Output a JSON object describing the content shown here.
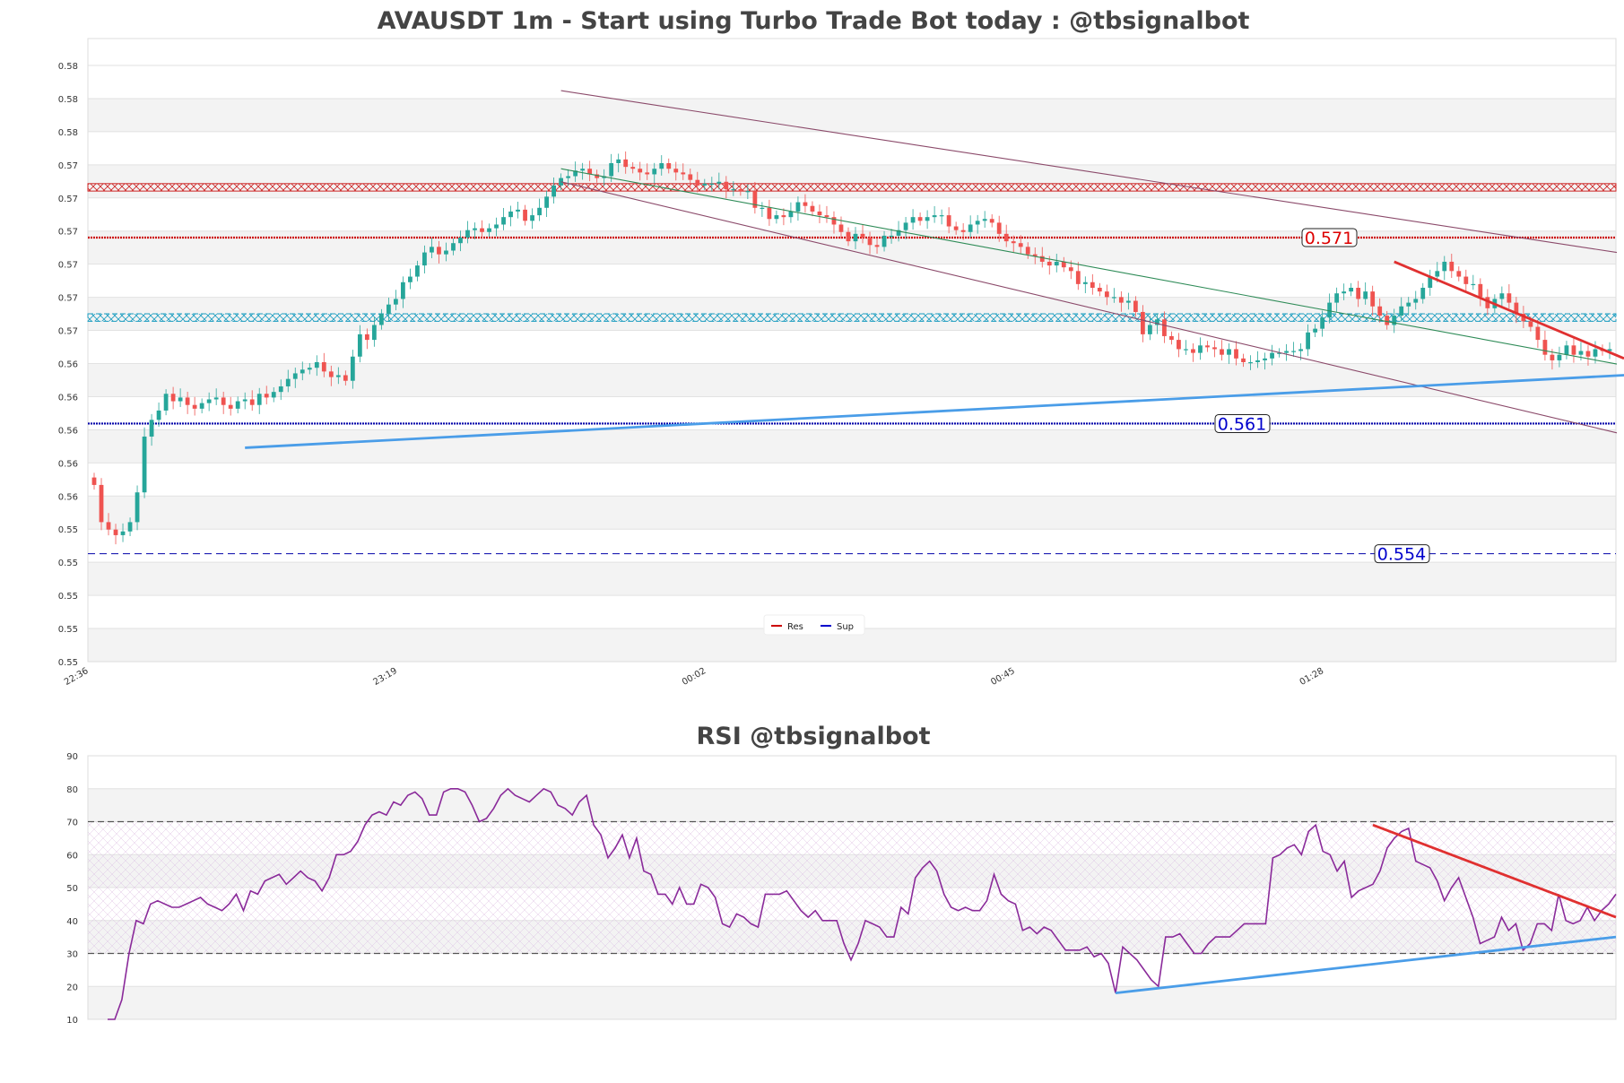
{
  "chart_data": [
    {
      "type": "candlestick",
      "title": "AVAUSDT 1m - Start using Turbo Trade Bot today : @tbsignalbot",
      "y_tick_labels": [
        "0.55",
        "0.55",
        "0.55",
        "0.55",
        "0.55",
        "0.56",
        "0.56",
        "0.56",
        "0.56",
        "0.56",
        "0.57",
        "0.57",
        "0.57",
        "0.57",
        "0.57",
        "0.57",
        "0.58",
        "0.58",
        "0.58"
      ],
      "ylim": [
        0.5487,
        0.5822
      ],
      "x_tick_labels": [
        "22:36",
        "23:19",
        "00:02",
        "00:45",
        "01:28"
      ],
      "x_tick_positions": [
        0,
        43,
        86,
        129,
        172
      ],
      "n_candles": 212,
      "grid": "horizontal bands",
      "close_series": [
        0.5582,
        0.5562,
        0.5558,
        0.5555,
        0.5557,
        0.5562,
        0.5578,
        0.5608,
        0.5617,
        0.5622,
        0.5631,
        0.5627,
        0.5629,
        0.5625,
        0.5623,
        0.5626,
        0.5628,
        0.5629,
        0.5625,
        0.5623,
        0.5627,
        0.5628,
        0.5625,
        0.5631,
        0.5629,
        0.5632,
        0.5635,
        0.5639,
        0.5642,
        0.5644,
        0.5645,
        0.5648,
        0.5643,
        0.564,
        0.5641,
        0.5638,
        0.5651,
        0.5663,
        0.566,
        0.5668,
        0.5674,
        0.5679,
        0.5682,
        0.5691,
        0.5694,
        0.57,
        0.5707,
        0.571,
        0.5706,
        0.5708,
        0.5712,
        0.5715,
        0.5719,
        0.572,
        0.5718,
        0.572,
        0.5722,
        0.5726,
        0.5729,
        0.573,
        0.5724,
        0.5727,
        0.5731,
        0.5737,
        0.5743,
        0.5747,
        0.5748,
        0.5751,
        0.5752,
        0.5749,
        0.5747,
        0.5748,
        0.5755,
        0.5757,
        0.5753,
        0.5752,
        0.575,
        0.5749,
        0.5752,
        0.5755,
        0.5752,
        0.575,
        0.5749,
        0.5746,
        0.5743,
        0.5744,
        0.5744,
        0.5745,
        0.5741,
        0.5741,
        0.574,
        0.574,
        0.5731,
        0.5731,
        0.5725,
        0.5727,
        0.5726,
        0.5729,
        0.5734,
        0.5732,
        0.5729,
        0.5727,
        0.5726,
        0.5722,
        0.5718,
        0.5713,
        0.5717,
        0.5715,
        0.5711,
        0.571,
        0.5716,
        0.5716,
        0.5719,
        0.5723,
        0.5726,
        0.5724,
        0.5726,
        0.5727,
        0.5727,
        0.5721,
        0.5719,
        0.5718,
        0.5722,
        0.5724,
        0.5725,
        0.5723,
        0.5717,
        0.5713,
        0.5712,
        0.571,
        0.5706,
        0.5705,
        0.5702,
        0.57,
        0.5702,
        0.5699,
        0.5697,
        0.569,
        0.5691,
        0.5688,
        0.5686,
        0.5683,
        0.5683,
        0.568,
        0.5681,
        0.5675,
        0.5663,
        0.5668,
        0.5671,
        0.5662,
        0.566,
        0.5655,
        0.5655,
        0.5653,
        0.5657,
        0.5656,
        0.5655,
        0.5652,
        0.5655,
        0.565,
        0.5648,
        0.5648,
        0.5649,
        0.565,
        0.5653,
        0.5653,
        0.5654,
        0.5654,
        0.5655,
        0.5664,
        0.5666,
        0.5672,
        0.568,
        0.5685,
        0.5686,
        0.5688,
        0.5682,
        0.5686,
        0.5678,
        0.5673,
        0.5668,
        0.5673,
        0.5678,
        0.568,
        0.5682,
        0.5688,
        0.5694,
        0.5697,
        0.5702,
        0.5697,
        0.5694,
        0.569,
        0.569,
        0.5683,
        0.5677,
        0.5682,
        0.5685,
        0.568,
        0.5674,
        0.567,
        0.5667,
        0.566,
        0.5652,
        0.5649,
        0.5652,
        0.5657,
        0.5652,
        0.5654,
        0.5651,
        0.5655,
        0.5654,
        0.5655,
        0.5659,
        0.566
      ],
      "resistance_zone": [
        0.574,
        0.5744
      ],
      "support_zone": [
        0.567,
        0.5674
      ],
      "resistance_line": 0.5715,
      "support_line": 0.5615,
      "support_line_2": 0.5545,
      "levels": [
        {
          "label": "0.571",
          "value": 0.5715,
          "color": "#dd0000"
        },
        {
          "label": "0.561",
          "value": 0.5615,
          "color": "#0000cc"
        },
        {
          "label": "0.554",
          "value": 0.5545,
          "color": "#0000cc"
        }
      ],
      "legend": [
        {
          "name": "Res",
          "color": "#cc0000"
        },
        {
          "name": "Sup",
          "color": "#0000cc"
        }
      ]
    },
    {
      "type": "line",
      "title": "RSI @tbsignalbot",
      "y_tick_labels": [
        "10",
        "20",
        "30",
        "40",
        "50",
        "60",
        "70",
        "80",
        "90"
      ],
      "ylim": [
        10,
        90
      ],
      "overbought": 70,
      "oversold": 30,
      "values": [
        10,
        10,
        16,
        30,
        40,
        39,
        45,
        46,
        45,
        44,
        44,
        45,
        46,
        47,
        45,
        44,
        43,
        45,
        48,
        43,
        49,
        48,
        52,
        53,
        54,
        51,
        53,
        55,
        53,
        52,
        49,
        53,
        60,
        60,
        61,
        64,
        69,
        72,
        73,
        72,
        76,
        75,
        78,
        79,
        77,
        72,
        72,
        79,
        80,
        80,
        79,
        75,
        70,
        71,
        74,
        78,
        80,
        78,
        77,
        76,
        78,
        80,
        79,
        75,
        74,
        72,
        76,
        78,
        69,
        66,
        59,
        62,
        66,
        59,
        65,
        55,
        54,
        48,
        48,
        45,
        50,
        45,
        45,
        51,
        50,
        47,
        39,
        38,
        42,
        41,
        39,
        38,
        48,
        48,
        48,
        49,
        46,
        43,
        41,
        43,
        40,
        40,
        40,
        33,
        28,
        33,
        40,
        39,
        38,
        35,
        35,
        44,
        42,
        53,
        56,
        58,
        55,
        48,
        44,
        43,
        44,
        43,
        43,
        46,
        54,
        48,
        46,
        45,
        37,
        38,
        36,
        38,
        37,
        34,
        31,
        31,
        31,
        32,
        29,
        30,
        27,
        18,
        32,
        30,
        28,
        25,
        22,
        20,
        35,
        35,
        36,
        33,
        30,
        30,
        33,
        35,
        35,
        35,
        37,
        39,
        39,
        39,
        39,
        59,
        60,
        62,
        63,
        60,
        67,
        69,
        61,
        60,
        55,
        58,
        47,
        49,
        50,
        51,
        55,
        62,
        65,
        67,
        68,
        58,
        57,
        56,
        52,
        46,
        50,
        53,
        47,
        41,
        33,
        34,
        35,
        41,
        37,
        39,
        31,
        33,
        39,
        39,
        37,
        48,
        40,
        39,
        40,
        44,
        40,
        43,
        45,
        48
      ]
    }
  ]
}
